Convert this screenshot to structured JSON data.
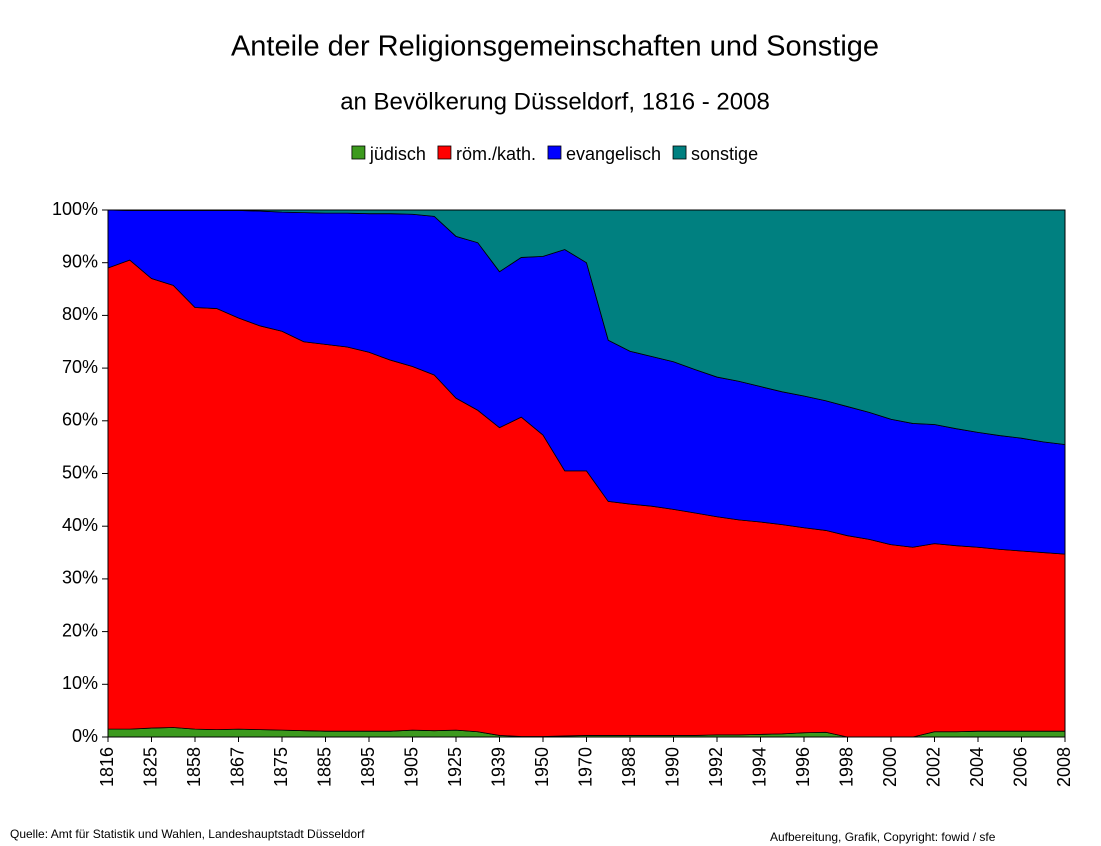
{
  "chart_data": {
    "type": "stacked_area",
    "title": "Anteile der Religionsgemeinschaften und Sonstige",
    "subtitle": "an Bevölkerung Düsseldorf, 1816 - 2008",
    "categories": [
      "1816",
      null,
      "1825",
      null,
      "1858",
      null,
      "1867",
      null,
      "1875",
      null,
      "1885",
      null,
      "1895",
      null,
      "1905",
      null,
      "1925",
      null,
      "1939",
      null,
      "1950",
      null,
      "1970",
      null,
      "1988",
      null,
      "1990",
      null,
      "1992",
      null,
      "1994",
      null,
      "1996",
      null,
      "1998",
      null,
      "2000",
      null,
      "2002",
      null,
      "2004",
      null,
      "2006",
      null,
      "2008"
    ],
    "series": [
      {
        "name": "jüdisch",
        "color": "#3c9a1e",
        "values": [
          1.5,
          1.5,
          1.7,
          1.8,
          1.5,
          1.4,
          1.5,
          1.4,
          1.3,
          1.2,
          1.1,
          1.1,
          1.1,
          1.1,
          1.3,
          1.2,
          1.3,
          1.0,
          0.3,
          0.1,
          0.1,
          0.2,
          0.3,
          0.3,
          0.3,
          0.3,
          0.3,
          0.3,
          0.4,
          0.4,
          0.5,
          0.6,
          0.8,
          0.9,
          0,
          0,
          0,
          0,
          1.0,
          1.0,
          1.1,
          1.1,
          1.1,
          1.1,
          1.1
        ]
      },
      {
        "name": "röm./kath.",
        "color": "#ff0000",
        "values": [
          87.5,
          89,
          85.3,
          83.9,
          80,
          79.9,
          78,
          76.6,
          75.7,
          73.8,
          73.4,
          72.9,
          71.9,
          70.4,
          69,
          67.5,
          63,
          61,
          58.4,
          60.6,
          57.2,
          50.3,
          50.2,
          44.4,
          43.9,
          43.5,
          42.9,
          42.2,
          41.4,
          40.8,
          40.3,
          39.7,
          38.9,
          38.3,
          38.2,
          37.5,
          36.5,
          36,
          35.7,
          35.3,
          34.9,
          34.5,
          34.2,
          33.9,
          33.6
        ]
      },
      {
        "name": "evangelisch",
        "color": "#0000ff",
        "values": [
          11,
          9.4,
          12.9,
          14.2,
          18.4,
          18.6,
          20.4,
          21.8,
          22.6,
          24.5,
          24.9,
          25.4,
          26.3,
          27.8,
          28.9,
          30.1,
          30.7,
          31.8,
          29.6,
          30.3,
          33.9,
          42,
          39.5,
          30.6,
          29,
          28.4,
          28,
          27.2,
          26.5,
          26.3,
          25.7,
          25.2,
          25,
          24.6,
          24.5,
          24.1,
          23.8,
          23.5,
          22.6,
          22.2,
          21.8,
          21.6,
          21.4,
          21,
          20.8
        ]
      },
      {
        "name": "sonstige",
        "color": "#008080",
        "values": [
          0,
          0.1,
          0.1,
          0.1,
          0.1,
          0.1,
          0.1,
          0.2,
          0.4,
          0.5,
          0.6,
          0.6,
          0.7,
          0.7,
          0.8,
          1.2,
          5,
          6.2,
          11.7,
          9,
          8.8,
          7.5,
          10,
          24.7,
          26.8,
          27.8,
          28.8,
          30.3,
          31.7,
          32.5,
          33.5,
          34.5,
          35.3,
          36.2,
          37.3,
          38.4,
          39.7,
          40.5,
          40.7,
          41.5,
          42.2,
          42.8,
          43.3,
          44,
          44.5
        ]
      }
    ],
    "ylim": [
      0,
      100
    ],
    "yticks": [
      {
        "value": 0,
        "label": "0%"
      },
      {
        "value": 10,
        "label": "10%"
      },
      {
        "value": 20,
        "label": "20%"
      },
      {
        "value": 30,
        "label": "30%"
      },
      {
        "value": 40,
        "label": "40%"
      },
      {
        "value": 50,
        "label": "50%"
      },
      {
        "value": 60,
        "label": "60%"
      },
      {
        "value": 70,
        "label": "70%"
      },
      {
        "value": 80,
        "label": "80%"
      },
      {
        "value": 90,
        "label": "90%"
      },
      {
        "value": 100,
        "label": "100%"
      }
    ],
    "legend": "top",
    "source": "Quelle: Amt für Statistik und Wahlen, Landeshauptstadt Düsseldorf",
    "credit": "Aufbereitung, Grafik, Copyright: fowid / sfe"
  }
}
